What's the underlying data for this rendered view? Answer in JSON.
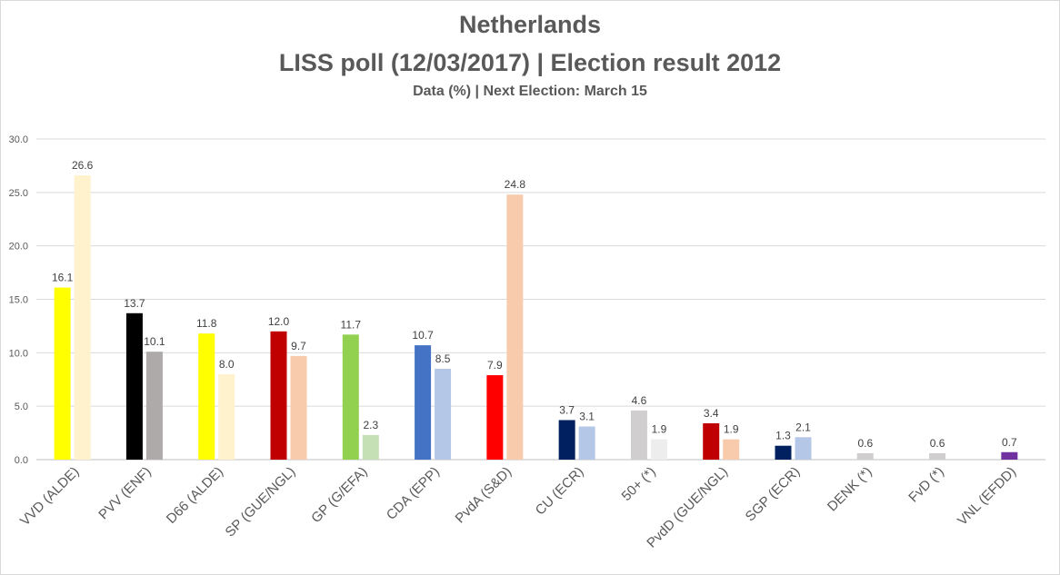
{
  "chart_data": {
    "type": "bar",
    "title": "Netherlands",
    "subtitle": "LISS poll (12/03/2017) | Election result 2012",
    "note": "Data (%) | Next Election: March 15",
    "ylim": [
      0,
      30
    ],
    "yticks": [
      "0.0",
      "5.0",
      "10.0",
      "15.0",
      "20.0",
      "25.0",
      "30.0"
    ],
    "grid": true,
    "categories": [
      "VVD (ALDE)",
      "PVV (ENF)",
      "D66 (ALDE)",
      "SP (GUE/NGL)",
      "GP (G/EFA)",
      "CDA (EPP)",
      "PvdA (S&D)",
      "CU (ECR)",
      "50+ (*)",
      "PvdD (GUE/NGL)",
      "SGP (ECR)",
      "DENK (*)",
      "FvD (*)",
      "VNL (EFDD)"
    ],
    "series": [
      {
        "values": [
          16.1,
          13.7,
          11.8,
          12.0,
          11.7,
          10.7,
          7.9,
          3.7,
          4.6,
          3.4,
          1.3,
          0.6,
          0.6,
          0.7
        ],
        "labels": [
          "16.1",
          "13.7",
          "11.8",
          "12.0",
          "11.7",
          "10.7",
          "7.9",
          "3.7",
          "4.6",
          "3.4",
          "1.3",
          "0.6",
          "0.6",
          "0.7"
        ],
        "colors": [
          "#ffff00",
          "#000000",
          "#ffff00",
          "#c00000",
          "#92d050",
          "#4472c4",
          "#ff0000",
          "#002060",
          "#d0cece",
          "#c00000",
          "#002060",
          "#d0cece",
          "#d0cece",
          "#7030a0"
        ]
      },
      {
        "values": [
          26.6,
          10.1,
          8.0,
          9.7,
          2.3,
          8.5,
          24.8,
          3.1,
          1.9,
          1.9,
          2.1,
          null,
          null,
          null
        ],
        "labels": [
          "26.6",
          "10.1",
          "8.0",
          "9.7",
          "2.3",
          "8.5",
          "24.8",
          "3.1",
          "1.9",
          "1.9",
          "2.1",
          null,
          null,
          null
        ],
        "colors": [
          "#fff2cc",
          "#aeaaaa",
          "#fff2cc",
          "#f8cbad",
          "#c5e0b4",
          "#b4c7e7",
          "#f8cbad",
          "#b4c7e7",
          "#ededed",
          "#f8cbad",
          "#b4c7e7",
          null,
          null,
          null
        ]
      }
    ]
  }
}
